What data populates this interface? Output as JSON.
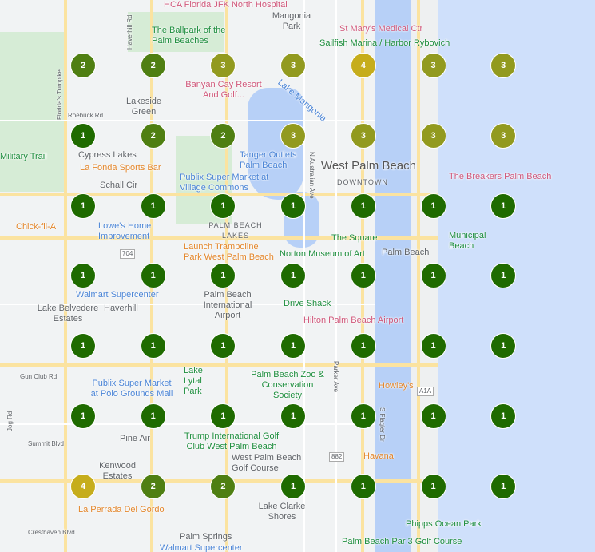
{
  "cluster_colors": {
    "1": "#1f6b00",
    "2": "#4f7f12",
    "3": "#929a1f",
    "4": "#c6ad1c"
  },
  "clusters": [
    [
      2,
      2,
      3,
      3,
      4,
      3,
      3
    ],
    [
      1,
      2,
      2,
      3,
      3,
      3,
      3
    ],
    [
      1,
      1,
      1,
      1,
      1,
      1,
      1
    ],
    [
      1,
      1,
      1,
      1,
      1,
      1,
      1
    ],
    [
      1,
      1,
      1,
      1,
      1,
      1,
      1
    ],
    [
      1,
      1,
      1,
      1,
      1,
      1,
      1
    ],
    [
      4,
      2,
      2,
      1,
      1,
      1,
      1
    ]
  ],
  "labels": [
    "HCA Florida JFK North Hospital",
    "Mangonia Park",
    "The Ballpark of the Palm Beaches",
    "St Mary's Medical Ctr",
    "Sailfish Marina / Harbor Rybovich",
    "Banyan Cay Resort And Golf...",
    "Lakeside Green",
    "Roebuck Rd",
    "Lake Mangonia",
    "Cypress Lakes",
    "La Fonda Sports Bar",
    "Tanger Outlets Palm Beach",
    "Publix Super Market at Village Commons",
    "PALM BEACH LAKES",
    "West Palm Beach",
    "DOWNTOWN",
    "The Breakers Palm Beach",
    "Chick-fil-A",
    "Lowe's Home Improvement",
    "Launch Trampoline Park West Palm Beach",
    "The Square",
    "Palm Beach",
    "Norton Museum of Art",
    "Municipal Beach",
    "Walmart Supercenter",
    "Palm Beach International Airport",
    "Haverhill",
    "Drive Shack",
    "Lake Belvedere Estates",
    "Hilton Palm Beach Airport",
    "Lake Lytal Park",
    "Palm Beach Zoo & Conservation Society",
    "Publix Super Market at Polo Grounds Mall",
    "Howley's",
    "Trump International Golf Club West Palm Beach",
    "Pine Air",
    "Havana",
    "Kenwood Estates",
    "West Palm Beach Golf Course",
    "La Perrada Del Gordo",
    "Lake Clarke Shores",
    "Phipps Ocean Park",
    "Palm Springs",
    "Walmart Supercenter",
    "Palm Beach Par 3 Golf Course",
    "N Australian Ave",
    "Florida's Turnpike",
    "Schall Cir",
    "Gun Club Rd",
    "Summit Blvd",
    "Crestbaven Blvd",
    "Parker Ave",
    "S Flagler Dr",
    "Haverhill Rd",
    "Jog Rd",
    "Military Trail",
    "704",
    "A1A",
    "882"
  ]
}
